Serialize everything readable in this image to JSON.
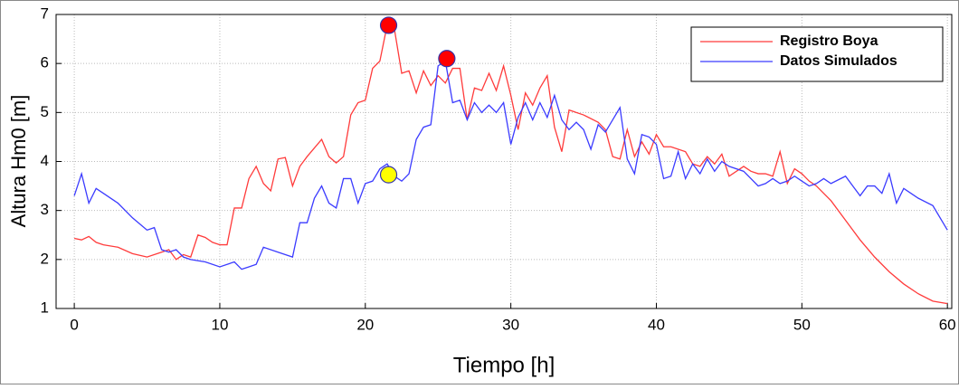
{
  "chart_data": {
    "type": "line",
    "xlabel": "Tiempo [h]",
    "ylabel": "Altura Hm0 [m]",
    "xlim": [
      -1.25,
      60.3
    ],
    "ylim": [
      1,
      7
    ],
    "xticks": [
      0,
      10,
      20,
      30,
      40,
      50,
      60
    ],
    "yticks": [
      1,
      2,
      3,
      4,
      5,
      6,
      7
    ],
    "grid": true,
    "legend": "upper right",
    "series": [
      {
        "name": "Registro Boya",
        "color": "#ff3b3b",
        "x": [
          0,
          0.5,
          1,
          1.5,
          2,
          3,
          4,
          5,
          6,
          6.5,
          7,
          7.5,
          8,
          8.5,
          9,
          9.5,
          10,
          10.5,
          11,
          11.5,
          12,
          12.5,
          13,
          13.5,
          14,
          14.5,
          15,
          15.5,
          16,
          17,
          17.5,
          18,
          18.5,
          19,
          19.5,
          20,
          20.5,
          21,
          21.5,
          22,
          22.5,
          23,
          23.5,
          24,
          24.5,
          25,
          25.5,
          26,
          26.5,
          27,
          27.5,
          28,
          28.5,
          29,
          29.5,
          30,
          30.5,
          31,
          31.5,
          32,
          32.5,
          33,
          33.5,
          34,
          35,
          36,
          36.5,
          37,
          37.5,
          38,
          38.5,
          39,
          39.5,
          40,
          40.5,
          41,
          42,
          42.5,
          43,
          43.5,
          44,
          44.5,
          45,
          46,
          46.5,
          47,
          47.5,
          48,
          48.5,
          49,
          49.5,
          50,
          50.5,
          51,
          52,
          53,
          54,
          55,
          56,
          57,
          58,
          59,
          60
        ],
        "values": [
          2.43,
          2.4,
          2.47,
          2.35,
          2.3,
          2.25,
          2.12,
          2.05,
          2.15,
          2.2,
          2.0,
          2.1,
          2.05,
          2.5,
          2.45,
          2.35,
          2.3,
          2.3,
          3.05,
          3.05,
          3.65,
          3.9,
          3.55,
          3.4,
          4.05,
          4.08,
          3.5,
          3.9,
          4.1,
          4.45,
          4.1,
          3.97,
          4.1,
          4.95,
          5.2,
          5.25,
          5.9,
          6.05,
          6.78,
          6.7,
          5.8,
          5.85,
          5.4,
          5.85,
          5.55,
          5.75,
          5.6,
          5.9,
          5.9,
          4.85,
          5.5,
          5.45,
          5.8,
          5.45,
          5.95,
          5.35,
          4.65,
          5.4,
          5.15,
          5.5,
          5.75,
          4.7,
          4.2,
          5.05,
          4.95,
          4.8,
          4.65,
          4.1,
          4.05,
          4.65,
          4.1,
          4.4,
          4.15,
          4.55,
          4.3,
          4.3,
          4.2,
          3.95,
          3.9,
          4.1,
          3.95,
          4.15,
          3.7,
          3.9,
          3.8,
          3.75,
          3.75,
          3.7,
          4.2,
          3.55,
          3.85,
          3.75,
          3.6,
          3.5,
          3.2,
          2.8,
          2.4,
          2.05,
          1.75,
          1.5,
          1.3,
          1.15,
          1.1
        ]
      },
      {
        "name": "Datos Simulados",
        "color": "#3b3bff",
        "x": [
          0,
          0.5,
          1,
          1.5,
          2,
          3,
          4,
          5,
          5.5,
          6,
          6.5,
          7,
          7.5,
          8,
          9,
          10,
          11,
          11.5,
          12,
          12.5,
          13,
          14,
          15,
          15.5,
          16,
          16.5,
          17,
          17.5,
          18,
          18.5,
          19,
          19.5,
          20,
          20.5,
          21,
          21.5,
          22,
          22.5,
          23,
          23.5,
          24,
          24.5,
          25,
          25.5,
          26,
          26.5,
          27,
          27.5,
          28,
          28.5,
          29,
          29.5,
          30,
          30.5,
          31,
          31.5,
          32,
          32.5,
          33,
          33.5,
          34,
          34.5,
          35,
          35.5,
          36,
          36.5,
          37,
          37.5,
          38,
          38.5,
          39,
          39.5,
          40,
          40.5,
          41,
          41.5,
          42,
          42.5,
          43,
          43.5,
          44,
          44.5,
          45,
          46,
          46.5,
          47,
          47.5,
          48,
          48.5,
          49,
          49.5,
          50,
          50.5,
          51,
          51.5,
          52,
          53,
          53.5,
          54,
          54.5,
          55,
          55.5,
          56,
          56.5,
          57,
          58,
          59,
          60
        ],
        "values": [
          3.3,
          3.75,
          3.15,
          3.45,
          3.35,
          3.15,
          2.85,
          2.6,
          2.65,
          2.2,
          2.15,
          2.2,
          2.05,
          2.0,
          1.95,
          1.85,
          1.95,
          1.8,
          1.85,
          1.9,
          2.25,
          2.15,
          2.05,
          2.75,
          2.75,
          3.25,
          3.5,
          3.15,
          3.05,
          3.65,
          3.65,
          3.15,
          3.55,
          3.6,
          3.85,
          3.95,
          3.7,
          3.6,
          3.75,
          4.45,
          4.7,
          4.75,
          5.95,
          6.05,
          5.2,
          5.25,
          4.85,
          5.2,
          5.0,
          5.15,
          5.0,
          5.2,
          4.35,
          4.9,
          5.2,
          4.85,
          5.2,
          4.9,
          5.35,
          4.85,
          4.65,
          4.8,
          4.65,
          4.25,
          4.75,
          4.6,
          4.85,
          5.1,
          4.05,
          3.75,
          4.55,
          4.5,
          4.35,
          3.65,
          3.7,
          4.2,
          3.65,
          3.95,
          3.75,
          4.05,
          3.8,
          4.0,
          3.9,
          3.8,
          3.65,
          3.5,
          3.55,
          3.65,
          3.55,
          3.6,
          3.7,
          3.6,
          3.5,
          3.55,
          3.65,
          3.55,
          3.7,
          3.5,
          3.3,
          3.5,
          3.5,
          3.35,
          3.75,
          3.15,
          3.45,
          3.25,
          3.1,
          2.6
        ]
      }
    ],
    "markers": [
      {
        "x": 21.6,
        "y": 6.78,
        "color": "#ff0000"
      },
      {
        "x": 25.6,
        "y": 6.1,
        "color": "#ff0000"
      },
      {
        "x": 21.6,
        "y": 3.73,
        "color": "#ffff00"
      }
    ]
  }
}
